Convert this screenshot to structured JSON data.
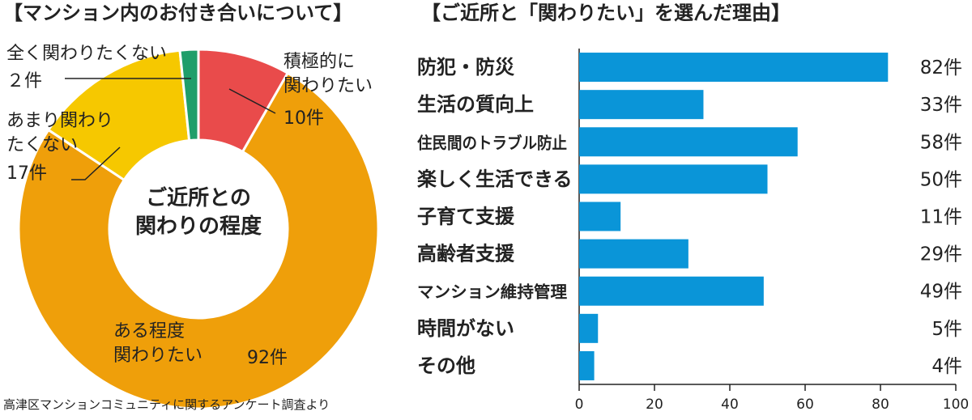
{
  "source": "高津区マンションコミュニティに関するアンケート調査より",
  "chart_data": [
    {
      "type": "donut",
      "title": "【マンション内のお付き合いについて】",
      "center_label": "ご近所との\n関わりの程度",
      "categories": [
        "積極的に\n関わりたい",
        "ある程度\n関わりたい",
        "あまり関わり\nたくない",
        "全く関わりたくない"
      ],
      "values": [
        10,
        92,
        17,
        2
      ],
      "value_labels": [
        "10件",
        "92件",
        "17件",
        "２件"
      ],
      "colors": [
        "#e94b4b",
        "#ef9f0a",
        "#f6c800",
        "#1f9e6a"
      ]
    },
    {
      "type": "hbar",
      "title": "【ご近所と「関わりたい」を選んだ理由】",
      "categories": [
        "防犯・防災",
        "生活の質向上",
        "住民間のトラブル防止",
        "楽しく生活できる",
        "子育て支援",
        "高齢者支援",
        "マンション維持管理",
        "時間がない",
        "その他"
      ],
      "values": [
        82,
        33,
        58,
        50,
        11,
        29,
        49,
        5,
        4
      ],
      "value_labels": [
        "82件",
        "33件",
        "58件",
        "50件",
        "11件",
        "29件",
        "49件",
        "5件",
        "4件"
      ],
      "color": "#0a95d8",
      "xlim": [
        0,
        100
      ],
      "xticks": [
        0,
        20,
        40,
        60,
        80,
        100
      ]
    }
  ]
}
